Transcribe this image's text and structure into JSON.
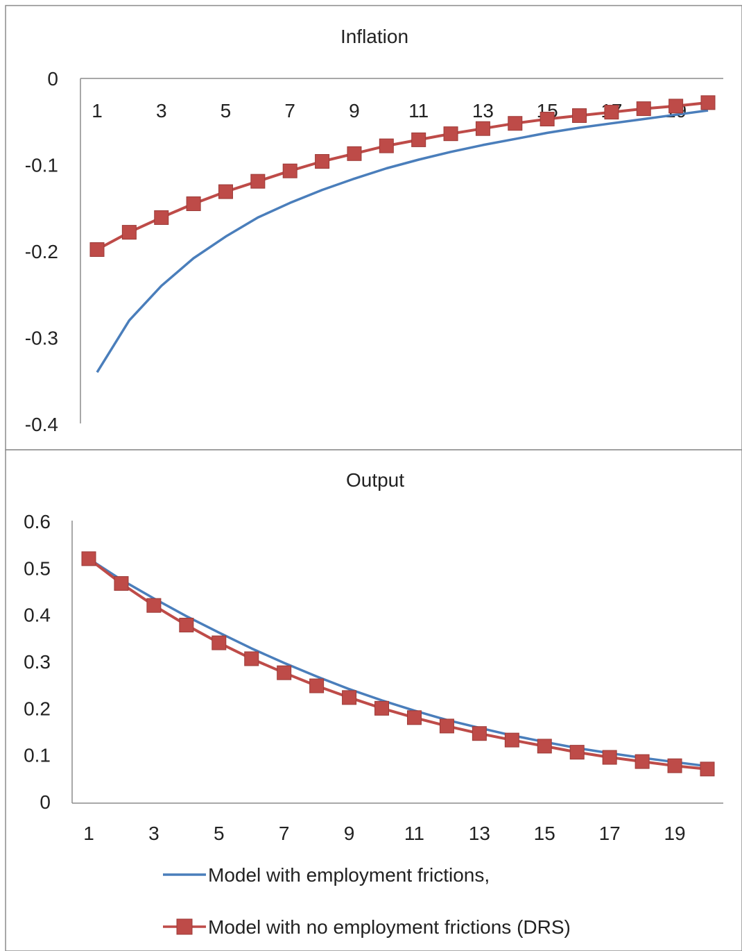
{
  "chart_data": [
    {
      "type": "line",
      "title": "Inflation",
      "xlabel": "",
      "ylabel": "",
      "x": [
        1,
        2,
        3,
        4,
        5,
        6,
        7,
        8,
        9,
        10,
        11,
        12,
        13,
        14,
        15,
        16,
        17,
        18,
        19,
        20
      ],
      "x_tick_labels": [
        "1",
        "3",
        "5",
        "7",
        "9",
        "11",
        "13",
        "15",
        "17",
        "19"
      ],
      "y_tick_labels": [
        "0",
        "-0.1",
        "-0.2",
        "-0.3",
        "-0.4"
      ],
      "ylim": [
        -0.4,
        0
      ],
      "grid": false,
      "series": [
        {
          "name": "Model with employment frictions,",
          "color": "#4a7ebb",
          "marker": "none",
          "values": [
            -0.34,
            -0.28,
            -0.24,
            -0.208,
            -0.183,
            -0.161,
            -0.144,
            -0.129,
            -0.116,
            -0.104,
            -0.094,
            -0.085,
            -0.077,
            -0.07,
            -0.063,
            -0.057,
            -0.052,
            -0.047,
            -0.042,
            -0.037
          ]
        },
        {
          "name": "Model with no employment frictions (DRS)",
          "color": "#be4b48",
          "marker": "square",
          "values": [
            -0.198,
            -0.178,
            -0.161,
            -0.145,
            -0.131,
            -0.119,
            -0.107,
            -0.096,
            -0.087,
            -0.078,
            -0.071,
            -0.064,
            -0.058,
            -0.052,
            -0.047,
            -0.043,
            -0.039,
            -0.035,
            -0.032,
            -0.028
          ]
        }
      ]
    },
    {
      "type": "line",
      "title": "Output",
      "xlabel": "",
      "ylabel": "",
      "x": [
        1,
        2,
        3,
        4,
        5,
        6,
        7,
        8,
        9,
        10,
        11,
        12,
        13,
        14,
        15,
        16,
        17,
        18,
        19,
        20
      ],
      "x_tick_labels": [
        "1",
        "3",
        "5",
        "7",
        "9",
        "11",
        "13",
        "15",
        "17",
        "19"
      ],
      "y_tick_labels": [
        "0.6",
        "0.5",
        "0.4",
        "0.3",
        "0.2",
        "0.1",
        "0"
      ],
      "ylim": [
        0,
        0.6
      ],
      "grid": false,
      "legend": "bottom",
      "series": [
        {
          "name": "Model with employment frictions,",
          "color": "#4a7ebb",
          "marker": "none",
          "values": [
            0.52,
            0.475,
            0.435,
            0.397,
            0.362,
            0.328,
            0.297,
            0.268,
            0.241,
            0.217,
            0.195,
            0.175,
            0.158,
            0.142,
            0.128,
            0.115,
            0.104,
            0.094,
            0.085,
            0.076
          ]
        },
        {
          "name": "Model with no employment frictions (DRS)",
          "color": "#be4b48",
          "marker": "square",
          "values": [
            0.52,
            0.467,
            0.42,
            0.378,
            0.34,
            0.306,
            0.276,
            0.248,
            0.223,
            0.2,
            0.18,
            0.162,
            0.146,
            0.132,
            0.119,
            0.106,
            0.095,
            0.086,
            0.077,
            0.07
          ]
        }
      ]
    }
  ]
}
